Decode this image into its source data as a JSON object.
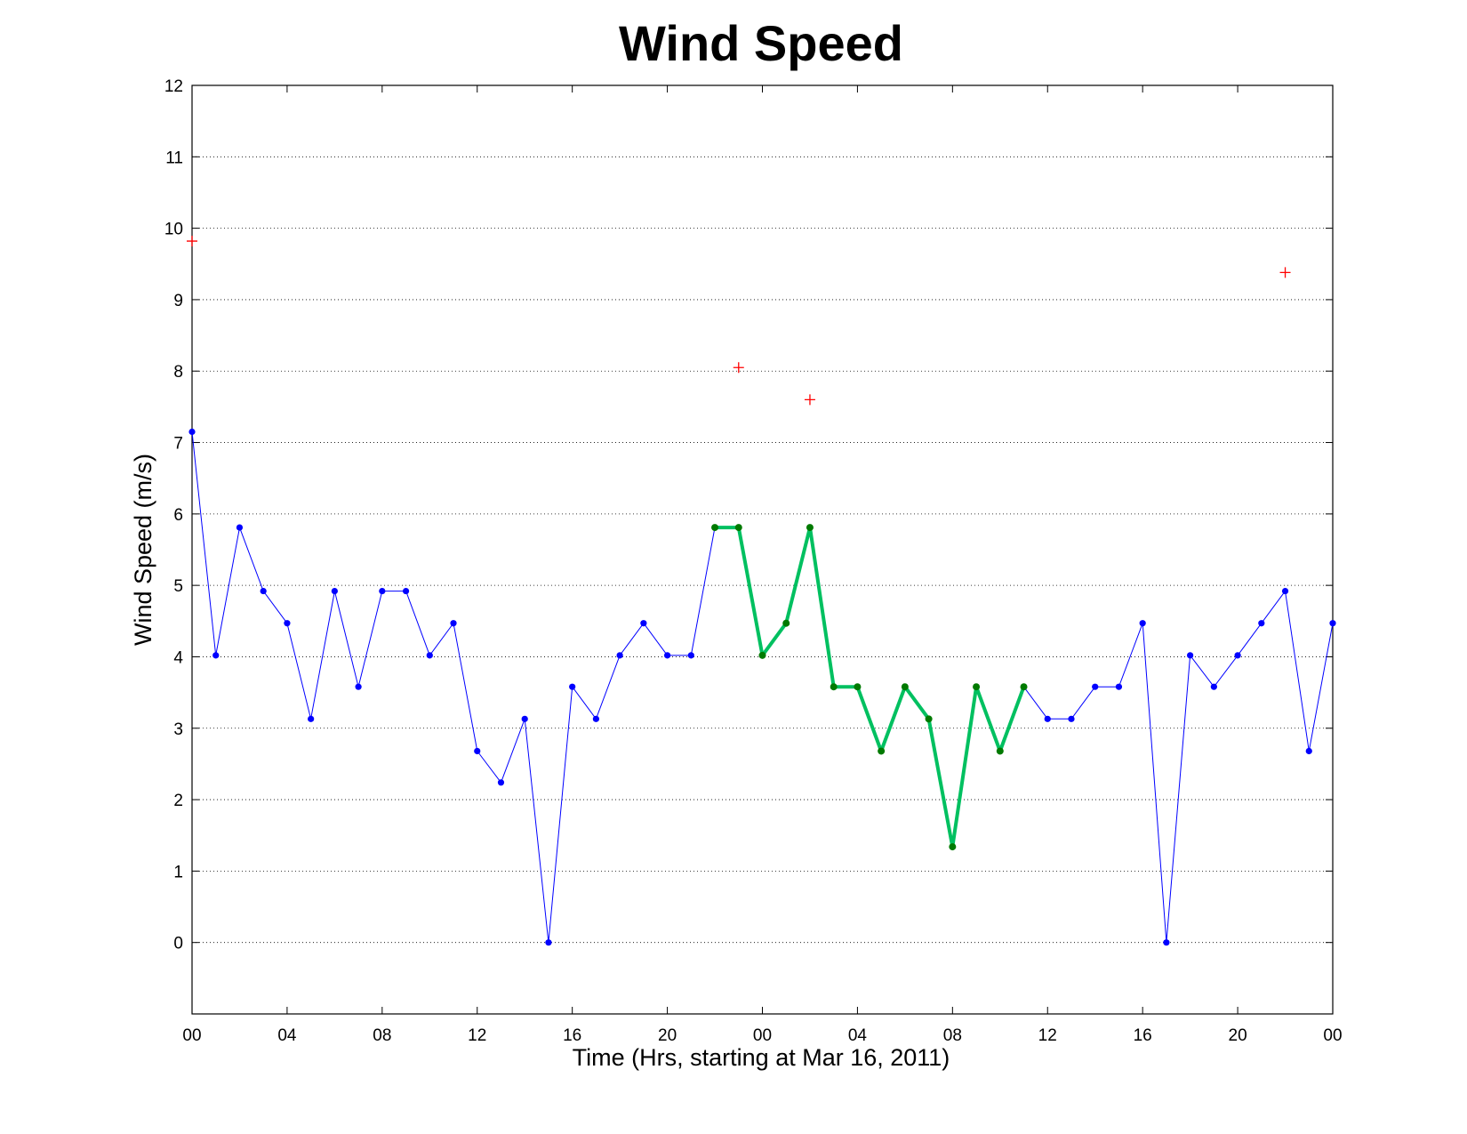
{
  "chart_data": {
    "type": "line",
    "title": "Wind Speed",
    "xlabel": "Time (Hrs, starting at Mar 16, 2011)",
    "ylabel": "Wind Speed (m/s)",
    "xlim": [
      0,
      48
    ],
    "ylim": [
      -1,
      12
    ],
    "grid": true,
    "y_ticks": [
      0,
      1,
      2,
      3,
      4,
      5,
      6,
      7,
      8,
      9,
      10,
      11,
      12
    ],
    "x_ticks": [
      {
        "x": 0,
        "label": "00"
      },
      {
        "x": 4,
        "label": "04"
      },
      {
        "x": 8,
        "label": "08"
      },
      {
        "x": 12,
        "label": "12"
      },
      {
        "x": 16,
        "label": "16"
      },
      {
        "x": 20,
        "label": "20"
      },
      {
        "x": 24,
        "label": "00"
      },
      {
        "x": 28,
        "label": "04"
      },
      {
        "x": 32,
        "label": "08"
      },
      {
        "x": 36,
        "label": "12"
      },
      {
        "x": 40,
        "label": "16"
      },
      {
        "x": 44,
        "label": "20"
      },
      {
        "x": 48,
        "label": "00"
      }
    ],
    "series": [
      {
        "color": "#0000ff",
        "style": "thin-line-dots",
        "x": [
          0,
          1,
          2,
          3,
          4,
          5,
          6,
          7,
          8,
          9,
          10,
          11,
          12,
          13,
          14,
          15,
          16,
          17,
          18,
          19,
          20,
          21,
          22,
          23,
          24,
          25,
          26,
          27,
          28,
          29,
          30,
          31,
          32,
          33,
          34,
          35,
          36,
          37,
          38,
          39,
          40,
          41,
          42,
          43,
          44,
          45,
          46,
          47,
          48
        ],
        "y": [
          7.15,
          4.02,
          5.81,
          4.92,
          4.47,
          3.13,
          4.92,
          3.58,
          4.92,
          4.92,
          4.02,
          4.47,
          2.68,
          2.24,
          3.13,
          0,
          3.58,
          3.13,
          4.02,
          4.47,
          4.02,
          4.02,
          5.81,
          5.81,
          4.02,
          4.47,
          5.81,
          3.58,
          3.58,
          2.68,
          3.58,
          3.13,
          1.34,
          3.58,
          2.68,
          3.58,
          3.13,
          3.13,
          3.58,
          3.58,
          4.47,
          0,
          4.02,
          3.58,
          4.02,
          4.47,
          4.92,
          2.68,
          4.47
        ]
      },
      {
        "color": "#00c060",
        "marker_color": "#007a00",
        "style": "thick-line-dots",
        "x": [
          22,
          23,
          24,
          25,
          26,
          27,
          28,
          29,
          30,
          31,
          32,
          33,
          34,
          35
        ],
        "y": [
          5.81,
          5.81,
          4.02,
          4.47,
          5.81,
          3.58,
          3.58,
          2.68,
          3.58,
          3.13,
          1.34,
          3.58,
          2.68,
          3.58
        ]
      },
      {
        "color": "#ff0000",
        "style": "plus-markers",
        "x": [
          0,
          23,
          26,
          46
        ],
        "y": [
          9.82,
          8.05,
          7.6,
          9.38
        ]
      }
    ]
  }
}
